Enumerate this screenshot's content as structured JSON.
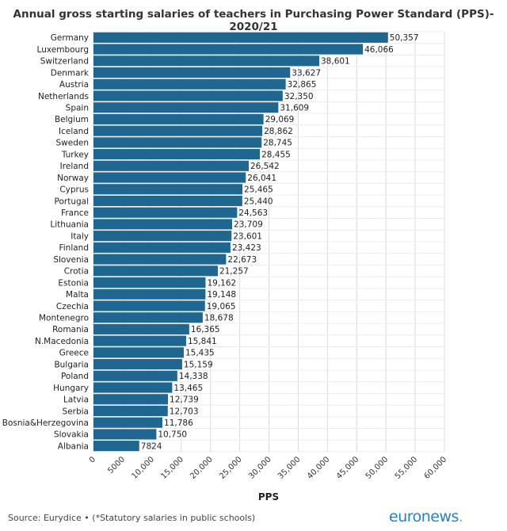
{
  "chart_data": {
    "type": "bar",
    "orientation": "horizontal",
    "title": "Annual gross starting salaries of teachers in Purchasing Power Standard (PPS)- 2020/21",
    "xlabel": "PPS",
    "ylabel": "",
    "xlim": [
      0,
      60000
    ],
    "xticks": [
      0,
      5000,
      10000,
      15000,
      20000,
      25000,
      30000,
      35000,
      40000,
      45000,
      50000,
      55000,
      60000
    ],
    "xtick_labels": [
      "0",
      "5000",
      "10,000",
      "15,000",
      "20,000",
      "25,000",
      "30,000",
      "35,000",
      "40,000",
      "45,000",
      "50,000",
      "55,000",
      "60,000"
    ],
    "grid": true,
    "bar_color": "#1f6791",
    "categories": [
      "Germany",
      "Luxembourg",
      "Switzerland",
      "Denmark",
      "Austria",
      "Netherlands",
      "Spain",
      "Belgium",
      "Iceland",
      "Sweden",
      "Turkey",
      "Ireland",
      "Norway",
      "Cyprus",
      "Portugal",
      "France",
      "Lithuania",
      "Italy",
      "Finland",
      "Slovenia",
      "Crotia",
      "Estonia",
      "Malta",
      "Czechia",
      "Montenegro",
      "Romania",
      "N.Macedonia",
      "Greece",
      "Bulgaria",
      "Poland",
      "Hungary",
      "Latvia",
      "Serbia",
      "Bosnia&Herzegovina",
      "Slovakia",
      "Albania"
    ],
    "values": [
      50357,
      46066,
      38601,
      33627,
      32865,
      32350,
      31609,
      29069,
      28862,
      28745,
      28455,
      26542,
      26041,
      25465,
      25440,
      24563,
      23709,
      23601,
      23423,
      22673,
      21257,
      19162,
      19148,
      19065,
      18678,
      16365,
      15841,
      15435,
      15159,
      14338,
      13465,
      12739,
      12703,
      11786,
      10750,
      7824
    ],
    "value_labels": [
      "50,357",
      "46,066",
      "38,601",
      "33,627",
      "32,865",
      "32,350",
      "31,609",
      "29,069",
      "28,862",
      "28,745",
      "28,455",
      "26,542",
      "26,041",
      "25,465",
      "25,440",
      "24,563",
      "23,709",
      "23,601",
      "23,423",
      "22,673",
      "21,257",
      "19,162",
      "19,148",
      "19,065",
      "18,678",
      "16,365",
      "15,841",
      "15,435",
      "15,159",
      "14,338",
      "13,465",
      "12,739",
      "12,703",
      "11,786",
      "10,750",
      "7824"
    ]
  },
  "footer": {
    "source": "Source: Eurydice • (*Statutory salaries in public schools)",
    "brand": "euronews",
    "brand_dot": "."
  }
}
